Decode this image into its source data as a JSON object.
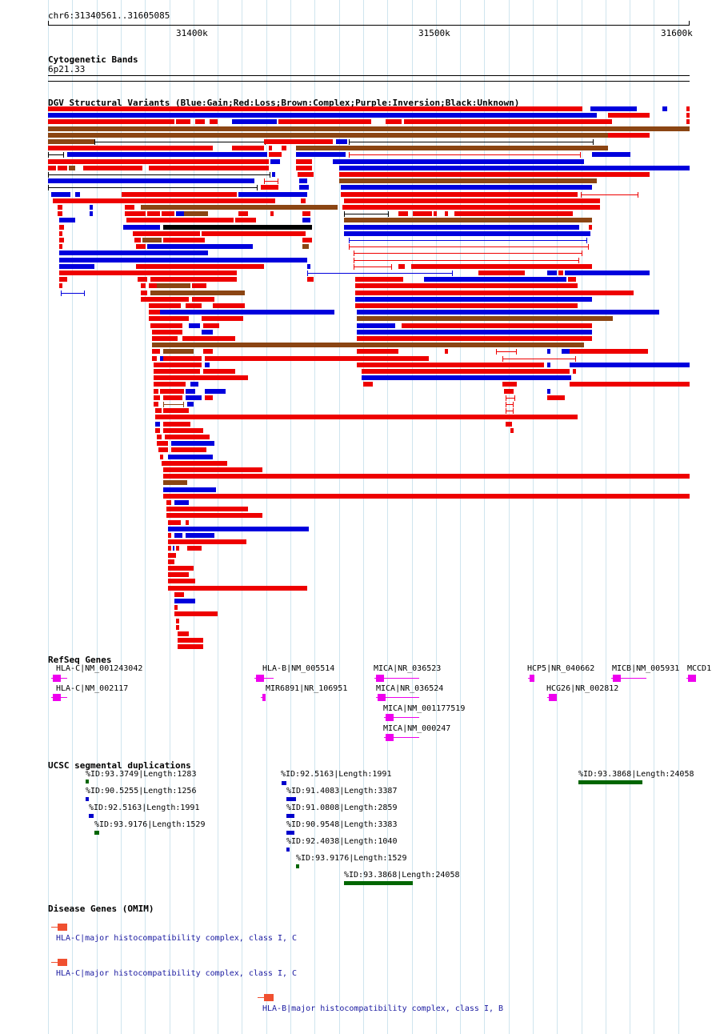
{
  "ruler": {
    "coords": "chr6:31340561..31605085",
    "ticks": [
      "31400k",
      "31500k",
      "31600k"
    ]
  },
  "tracks": {
    "cytoband": {
      "title": "Cytogenetic Bands",
      "band": "6p21.33"
    },
    "dgv": {
      "title": "DGV Structural Variants (Blue:Gain;Red:Loss;Brown:Complex;Purple:Inversion;Black:Unknown)"
    },
    "refseq": {
      "title": "RefSeq Genes",
      "genes": [
        {
          "label": "HLA-C|NM_001243042"
        },
        {
          "label": "HLA-C|NM_002117"
        },
        {
          "label": "HLA-B|NM_005514"
        },
        {
          "label": "MIR6891|NR_106951"
        },
        {
          "label": "MICA|NR_036523"
        },
        {
          "label": "MICA|NR_036524"
        },
        {
          "label": "MICA|NM_001177519"
        },
        {
          "label": "MICA|NM_000247"
        },
        {
          "label": "HCP5|NR_040662"
        },
        {
          "label": "HCG26|NR_002812"
        },
        {
          "label": "MICB|NM_005931"
        },
        {
          "label": "MCCD1"
        }
      ]
    },
    "segdup": {
      "title": "UCSC segmental duplications",
      "items": [
        {
          "label": "%ID:93.3749|Length:1283"
        },
        {
          "label": "%ID:90.5255|Length:1256"
        },
        {
          "label": "%ID:92.5163|Length:1991"
        },
        {
          "label": "%ID:93.9176|Length:1529"
        },
        {
          "label": "%ID:92.5163|Length:1991"
        },
        {
          "label": "%ID:91.4083|Length:3387"
        },
        {
          "label": "%ID:91.0808|Length:2859"
        },
        {
          "label": "%ID:90.9548|Length:3383"
        },
        {
          "label": "%ID:92.4038|Length:1040"
        },
        {
          "label": "%ID:93.9176|Length:1529"
        },
        {
          "label": "%ID:93.3868|Length:24058"
        },
        {
          "label": "%ID:93.3868|Length:24058"
        }
      ]
    },
    "omim": {
      "title": "Disease Genes (OMIM)",
      "items": [
        {
          "label": "HLA-C|major histocompatibility complex, class I, C"
        },
        {
          "label": "HLA-C|major histocompatibility complex, class I, C"
        },
        {
          "label": "HLA-B|major histocompatibility complex, class I, B"
        }
      ]
    }
  },
  "colors": {
    "gain": "#0000dd",
    "loss": "#ee0000",
    "complex": "#8b4513",
    "unknown": "#000000",
    "gene": "#ee00ee",
    "segdup_blue": "#0000cc",
    "segdup_green": "#006600",
    "omim": "#f05030",
    "grid": "#cfe4ee"
  }
}
